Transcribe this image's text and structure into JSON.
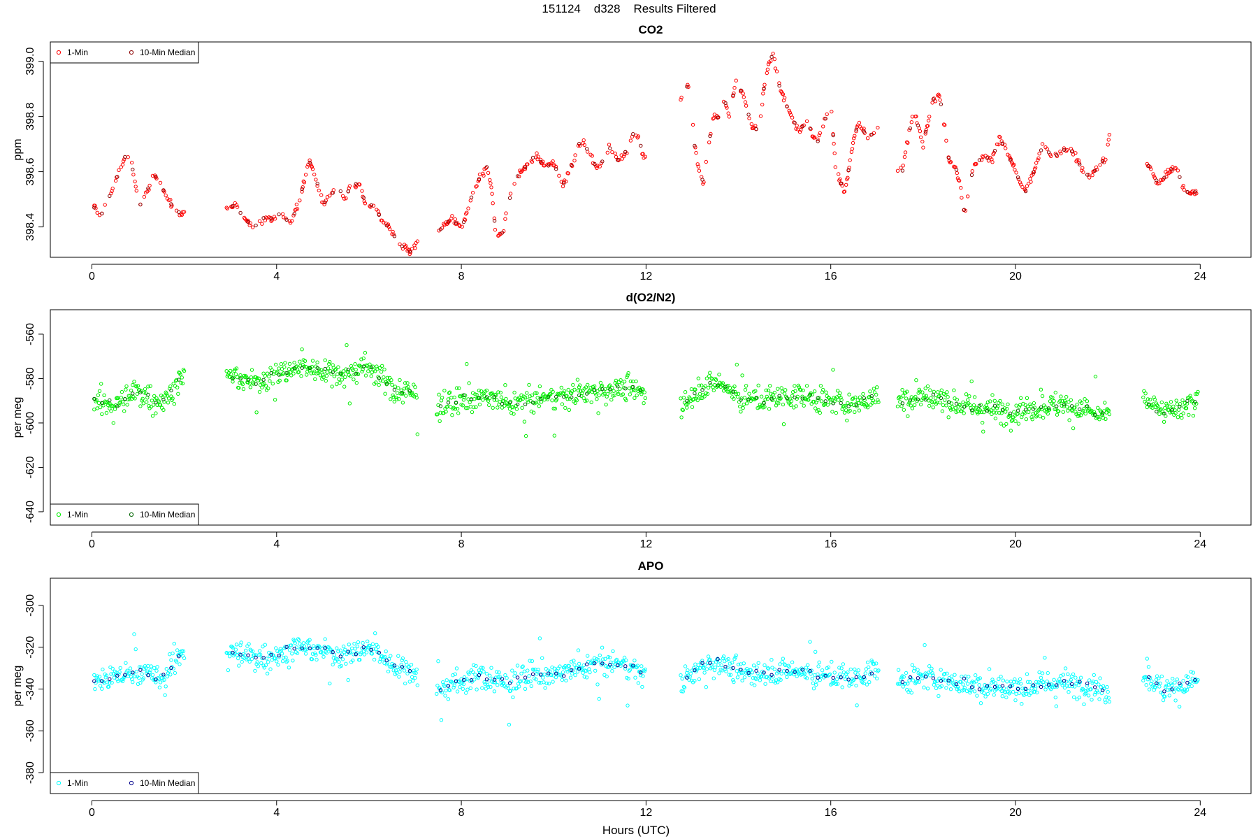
{
  "figure": {
    "title": "151124    d328    Results Filtered",
    "xlabel": "Hours (UTC)"
  },
  "colors": {
    "co2_1min": "#ff0000",
    "co2_median": "#8b0000",
    "o2_1min": "#00ee00",
    "o2_median": "#006400",
    "apo_1min": "#00ffff",
    "apo_median": "#00008b"
  },
  "chart_data": [
    {
      "type": "scatter",
      "title": "CO2",
      "xlabel": "",
      "ylabel": "ppm",
      "xlim": [
        -0.9,
        25.1
      ],
      "ylim": [
        398.29,
        399.07
      ],
      "xticks": [
        0,
        4,
        8,
        12,
        16,
        20,
        24
      ],
      "yticks": [
        398.4,
        398.6,
        398.8,
        399.0
      ],
      "ytick_labels": [
        "398.4",
        "398.6",
        "398.8",
        "399.0"
      ],
      "legend": {
        "placement": "top-left",
        "entries": [
          "1-Min",
          "10-Min Median"
        ]
      },
      "gaps": [
        [
          2.0,
          2.9
        ],
        [
          7.05,
          7.45
        ],
        [
          12.0,
          12.75
        ],
        [
          17.05,
          17.45
        ],
        [
          22.05,
          22.75
        ]
      ],
      "series": [
        {
          "name": "1-Min",
          "anchors": {
            "x": [
              0.05,
              0.2,
              0.4,
              0.6,
              0.75,
              0.85,
              0.95,
              1.05,
              1.25,
              1.35,
              1.5,
              1.65,
              1.8,
              1.95,
              2.9,
              3.1,
              3.3,
              3.5,
              3.7,
              3.9,
              4.1,
              4.3,
              4.5,
              4.7,
              4.9,
              5.0,
              5.2,
              5.3,
              5.5,
              5.6,
              5.8,
              5.95,
              6.1,
              6.3,
              6.5,
              6.7,
              6.9,
              7.05,
              7.45,
              7.6,
              7.8,
              8.0,
              8.2,
              8.4,
              8.5,
              8.55,
              8.65,
              8.75,
              8.9,
              9.0,
              9.2,
              9.4,
              9.6,
              9.8,
              10.0,
              10.2,
              10.4,
              10.6,
              10.7,
              10.9,
              11.0,
              11.2,
              11.4,
              11.6,
              11.75,
              11.85,
              11.95,
              12.75,
              12.85,
              12.95,
              13.05,
              13.15,
              13.25,
              13.35,
              13.5,
              13.6,
              13.7,
              13.8,
              13.95,
              14.1,
              14.3,
              14.45,
              14.55,
              14.65,
              14.75,
              14.9,
              15.1,
              15.3,
              15.5,
              15.7,
              15.9,
              16.0,
              16.1,
              16.3,
              16.5,
              16.6,
              16.8,
              17.05,
              17.45,
              17.55,
              17.65,
              17.8,
              18.0,
              18.2,
              18.35,
              18.45,
              18.55,
              18.7,
              18.8,
              18.9,
              19.1,
              19.3,
              19.5,
              19.65,
              19.8,
              20.0,
              20.2,
              20.4,
              20.6,
              20.8,
              21.0,
              21.2,
              21.4,
              21.6,
              21.8,
              21.95,
              22.05,
              22.75,
              22.9,
              23.1,
              23.3,
              23.5,
              23.6,
              23.75,
              23.95
            ],
            "y": [
              398.47,
              398.44,
              398.52,
              398.6,
              398.67,
              398.64,
              398.55,
              398.48,
              398.55,
              398.59,
              398.55,
              398.5,
              398.46,
              398.45,
              398.47,
              398.48,
              398.43,
              398.4,
              398.43,
              398.43,
              398.45,
              398.41,
              398.5,
              398.64,
              398.55,
              398.48,
              398.52,
              398.55,
              398.5,
              398.56,
              398.55,
              398.47,
              398.48,
              398.42,
              398.38,
              398.33,
              398.31,
              398.34,
              398.37,
              398.4,
              398.43,
              398.39,
              398.5,
              398.58,
              398.6,
              398.62,
              398.55,
              398.36,
              398.38,
              398.48,
              398.58,
              398.62,
              398.66,
              398.62,
              398.63,
              398.55,
              398.63,
              398.72,
              398.69,
              398.62,
              398.62,
              398.69,
              398.64,
              398.68,
              398.75,
              398.72,
              398.65,
              398.86,
              398.9,
              398.92,
              398.7,
              398.6,
              398.56,
              398.7,
              398.82,
              398.78,
              398.86,
              398.8,
              398.93,
              398.88,
              398.76,
              398.75,
              398.9,
              398.98,
              399.03,
              398.9,
              398.82,
              398.75,
              398.78,
              398.7,
              398.8,
              398.86,
              398.62,
              398.52,
              398.72,
              398.78,
              398.72,
              398.76,
              398.62,
              398.6,
              398.7,
              398.82,
              398.7,
              398.86,
              398.88,
              398.78,
              398.65,
              398.62,
              398.55,
              398.45,
              398.63,
              398.65,
              398.65,
              398.72,
              398.68,
              398.6,
              398.52,
              398.6,
              398.7,
              398.65,
              398.68,
              398.68,
              398.62,
              398.58,
              398.62,
              398.65,
              398.75,
              398.62,
              398.62,
              398.55,
              398.6,
              398.62,
              398.55,
              398.52,
              398.53
            ]
          },
          "noise": 0.008
        },
        {
          "name": "10-Min Median",
          "derived_from": "1-Min",
          "interval_hours": 0.1667
        }
      ]
    },
    {
      "type": "scatter",
      "title": "d(O2/N2)",
      "xlabel": "",
      "ylabel": "per meg",
      "xlim": [
        -0.9,
        25.1
      ],
      "ylim": [
        -646,
        -549
      ],
      "xticks": [
        0,
        4,
        8,
        12,
        16,
        20,
        24
      ],
      "yticks": [
        -640,
        -620,
        -600,
        -580,
        -560
      ],
      "ytick_labels": [
        "-640",
        "-620",
        "-600",
        "-580",
        "-560"
      ],
      "legend": {
        "placement": "bottom-left",
        "entries": [
          "1-Min",
          "10-Min Median"
        ]
      },
      "gaps": [
        [
          2.0,
          2.9
        ],
        [
          7.05,
          7.45
        ],
        [
          12.0,
          12.75
        ],
        [
          17.05,
          17.45
        ],
        [
          22.05,
          22.75
        ]
      ],
      "series": [
        {
          "name": "1-Min",
          "anchors": {
            "x": [
              0.05,
              0.5,
              1.0,
              1.5,
              1.95,
              2.9,
              3.5,
              4.0,
              4.5,
              5.0,
              5.5,
              6.0,
              6.5,
              7.05,
              7.45,
              8.0,
              8.5,
              9.0,
              9.5,
              10.0,
              10.5,
              11.0,
              11.5,
              11.95,
              12.75,
              13.25,
              13.6,
              14.0,
              14.5,
              15.0,
              15.5,
              16.0,
              16.5,
              17.05,
              17.45,
              18.0,
              18.5,
              19.0,
              19.5,
              20.0,
              20.5,
              21.0,
              21.5,
              22.05,
              22.75,
              23.2,
              23.6,
              23.95
            ],
            "y": [
              -590,
              -592,
              -586,
              -591,
              -580,
              -578,
              -582,
              -578,
              -575,
              -576,
              -578,
              -574,
              -585,
              -587,
              -593,
              -590,
              -588,
              -592,
              -590,
              -588,
              -587,
              -585,
              -584,
              -586,
              -592,
              -583,
              -582,
              -588,
              -590,
              -588,
              -588,
              -590,
              -592,
              -587,
              -590,
              -588,
              -590,
              -593,
              -594,
              -595,
              -593,
              -592,
              -594,
              -597,
              -588,
              -596,
              -592,
              -590
            ]
          },
          "noise": 7
        },
        {
          "name": "10-Min Median",
          "derived_from": "1-Min",
          "interval_hours": 0.1667
        }
      ]
    },
    {
      "type": "scatter",
      "title": "APO",
      "xlabel": "Hours (UTC)",
      "ylabel": "per meg",
      "xlim": [
        -0.9,
        25.1
      ],
      "ylim": [
        -390,
        -287
      ],
      "xticks": [
        0,
        4,
        8,
        12,
        16,
        20,
        24
      ],
      "yticks": [
        -380,
        -360,
        -340,
        -320,
        -300
      ],
      "ytick_labels": [
        "-380",
        "-360",
        "-340",
        "-320",
        "-300"
      ],
      "legend": {
        "placement": "bottom-left",
        "entries": [
          "1-Min",
          "10-Min Median"
        ]
      },
      "gaps": [
        [
          2.0,
          2.9
        ],
        [
          7.05,
          7.45
        ],
        [
          12.0,
          12.75
        ],
        [
          17.05,
          17.45
        ],
        [
          22.05,
          22.75
        ]
      ],
      "series": [
        {
          "name": "1-Min",
          "anchors": {
            "x": [
              0.05,
              0.5,
              1.0,
              1.5,
              1.95,
              2.9,
              3.5,
              4.0,
              4.5,
              5.0,
              5.5,
              6.0,
              6.5,
              7.05,
              7.45,
              8.0,
              8.5,
              9.0,
              9.5,
              10.0,
              10.5,
              11.0,
              11.5,
              11.95,
              12.75,
              13.25,
              13.6,
              14.0,
              14.5,
              15.0,
              15.5,
              16.0,
              16.5,
              17.05,
              17.45,
              18.0,
              18.5,
              19.0,
              19.5,
              20.0,
              20.5,
              21.0,
              21.5,
              22.05,
              22.75,
              23.2,
              23.6,
              23.95
            ],
            "y": [
              -336,
              -335,
              -331,
              -336,
              -322,
              -322,
              -325,
              -324,
              -320,
              -322,
              -324,
              -320,
              -328,
              -332,
              -341,
              -336,
              -334,
              -338,
              -333,
              -333,
              -331,
              -328,
              -328,
              -332,
              -338,
              -328,
              -327,
              -332,
              -332,
              -331,
              -332,
              -334,
              -335,
              -330,
              -336,
              -334,
              -336,
              -338,
              -339,
              -340,
              -338,
              -337,
              -338,
              -342,
              -332,
              -341,
              -338,
              -336
            ]
          },
          "noise": 7.5
        },
        {
          "name": "10-Min Median",
          "derived_from": "1-Min",
          "interval_hours": 0.1667
        }
      ]
    }
  ]
}
